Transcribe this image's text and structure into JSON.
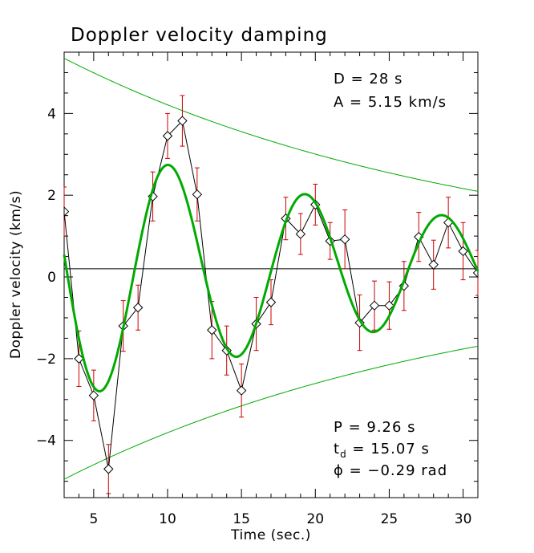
{
  "chart_data": {
    "type": "line",
    "title": "Doppler velocity damping",
    "xlabel": "Time (sec.)",
    "ylabel": "Doppler velocity (km/s)",
    "xlim": [
      3,
      31
    ],
    "ylim": [
      -5.4,
      5.5
    ],
    "xticks": [
      5,
      10,
      15,
      20,
      25,
      30
    ],
    "yticks": [
      -4,
      -2,
      0,
      2,
      4
    ],
    "xtick_labels": [
      "5",
      "10",
      "15",
      "20",
      "25",
      "30"
    ],
    "ytick_labels": [
      "−4",
      "−2",
      "0",
      "2",
      "4"
    ],
    "grid": false,
    "reference_level": 0.2,
    "annotations": {
      "top": [
        "D = 28 s",
        "A = 5.15 km/s"
      ],
      "period": "P = 9.26 s",
      "damping_prefix": "t",
      "damping_sub": "d",
      "damping_value": " = 15.07 s",
      "phase_symbol": "ϕ",
      "phase_value": " = −0.29 rad"
    },
    "series": [
      {
        "type": "observed",
        "color": "#000000",
        "error_color": "#cc0000",
        "x": [
          3,
          4,
          5,
          6,
          7,
          8,
          9,
          10,
          11,
          12,
          13,
          14,
          15,
          16,
          17,
          18,
          19,
          20,
          21,
          22,
          23,
          24,
          25,
          26,
          27,
          28,
          29,
          30,
          31
        ],
        "y": [
          1.6,
          -2.0,
          -2.9,
          -4.7,
          -1.2,
          -0.75,
          1.97,
          3.45,
          3.82,
          2.02,
          -1.3,
          -1.8,
          -2.78,
          -1.15,
          -0.62,
          1.43,
          1.05,
          1.77,
          0.88,
          0.92,
          -1.12,
          -0.7,
          -0.7,
          -0.22,
          0.98,
          0.3,
          1.33,
          0.63,
          0.1
        ],
        "err": [
          0.6,
          0.68,
          0.62,
          0.6,
          0.62,
          0.55,
          0.6,
          0.55,
          0.62,
          0.65,
          0.7,
          0.6,
          0.65,
          0.65,
          0.55,
          0.52,
          0.5,
          0.5,
          0.45,
          0.72,
          0.68,
          0.6,
          0.58,
          0.6,
          0.6,
          0.6,
          0.62,
          0.7,
          0.55
        ]
      },
      {
        "type": "damped_fit",
        "color": "#00aa00",
        "params": {
          "offset": 0.2,
          "A": 5.15,
          "D": 28,
          "P": 9.26,
          "td": 15.07,
          "phi": -0.29,
          "t_peak": 10.1
        }
      },
      {
        "type": "envelope",
        "color": "#00aa00",
        "params": {
          "offset": 0.2,
          "A": 5.15,
          "D": 28
        }
      }
    ]
  }
}
